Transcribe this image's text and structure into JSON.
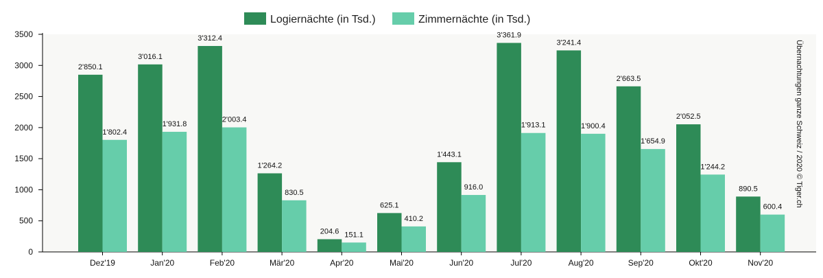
{
  "chart_data": {
    "type": "bar",
    "categories": [
      "Dez'19",
      "Jan'20",
      "Feb'20",
      "Mär'20",
      "Apr'20",
      "Mai'20",
      "Jun'20",
      "Jul'20",
      "Aug'20",
      "Sep'20",
      "Okt'20",
      "Nov'20"
    ],
    "series": [
      {
        "name": "Logiernächte (in Tsd.)",
        "color": "#2e8b57",
        "values": [
          2850.1,
          3016.1,
          3312.4,
          1264.2,
          204.6,
          625.1,
          1443.1,
          3361.9,
          3241.4,
          2663.5,
          2052.5,
          890.5
        ],
        "labels": [
          "2'850.1",
          "3'016.1",
          "3'312.4",
          "1'264.2",
          "204.6",
          "625.1",
          "1'443.1",
          "3'361.9",
          "3'241.4",
          "2'663.5",
          "2'052.5",
          "890.5"
        ]
      },
      {
        "name": "Zimmernächte (in Tsd.)",
        "color": "#66cdaa",
        "values": [
          1802.4,
          1931.8,
          2003.4,
          830.5,
          151.1,
          410.2,
          916.0,
          1913.1,
          1900.4,
          1654.9,
          1244.2,
          600.4
        ],
        "labels": [
          "1'802.4",
          "1'931.8",
          "2'003.4",
          "830.5",
          "151.1",
          "410.2",
          "916.0",
          "1'913.1",
          "1'900.4",
          "1'654.9",
          "1'244.2",
          "600.4"
        ]
      }
    ],
    "yticks": [
      "0",
      "500",
      "1000",
      "1500",
      "2000",
      "2500",
      "3000",
      "3500"
    ],
    "ylim": [
      0,
      3500
    ],
    "legend_position": "top-center",
    "side_note": "Übernachtungen ganze Schweiz / 2020 © Tiger.ch",
    "background": "#f8f8f6",
    "grid": false
  }
}
